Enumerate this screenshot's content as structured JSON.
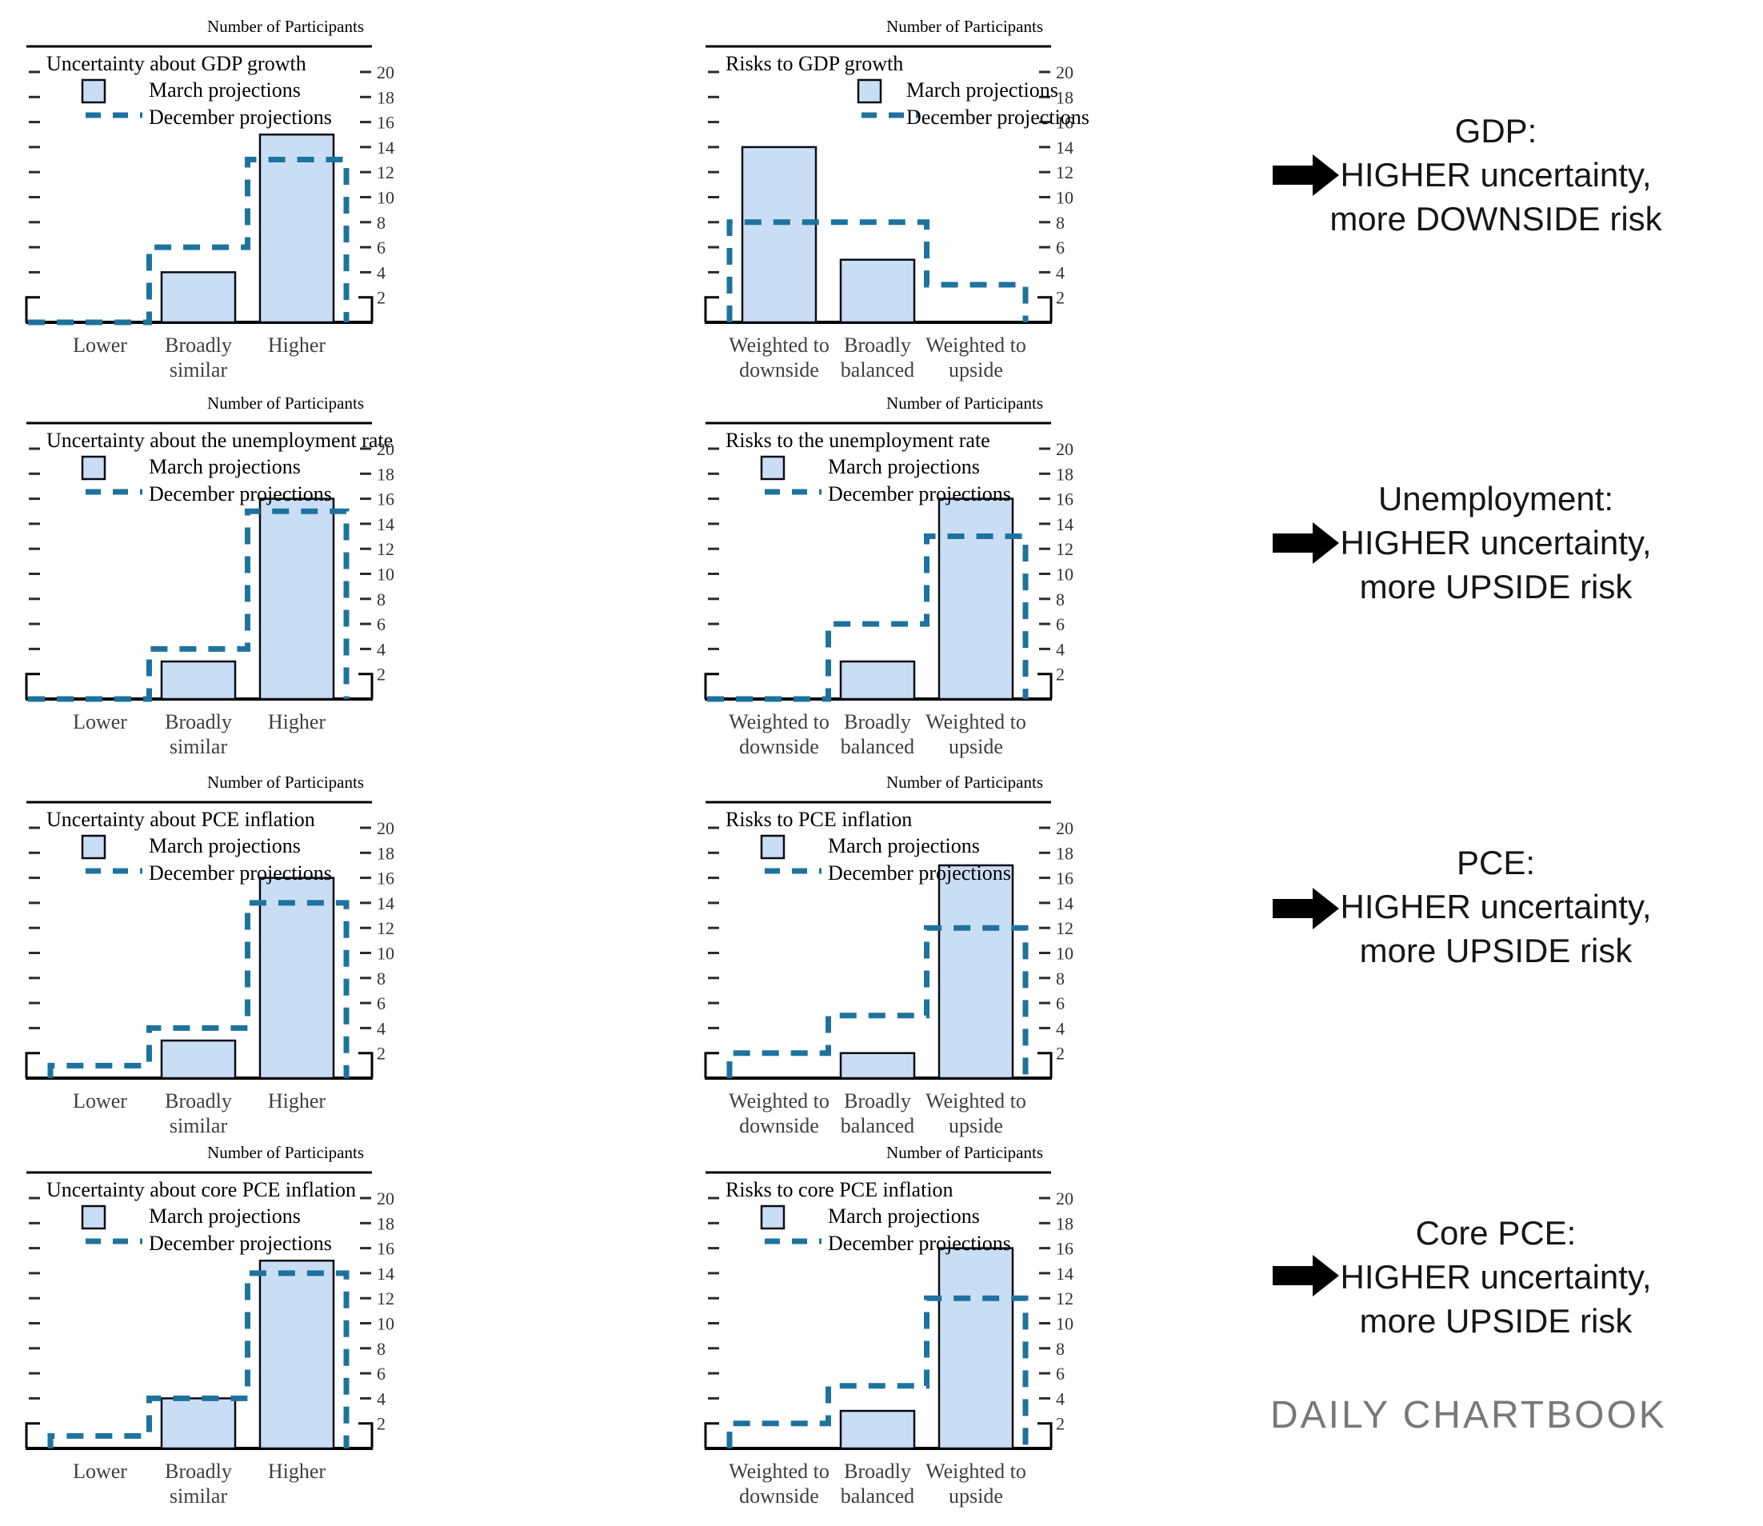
{
  "watermark": "DAILY CHARTBOOK",
  "axis_title": "Number of Participants",
  "legend": {
    "march": "March projections",
    "december": "December projections"
  },
  "y_axis": {
    "min": 0,
    "max": 20,
    "tick_step": 2,
    "labeled_ticks": [
      2,
      4,
      6,
      8,
      10,
      12,
      14,
      16,
      18,
      20
    ]
  },
  "colors": {
    "bar_fill": "#C9DEF4",
    "bar_stroke": "#0B0B15",
    "december_line": "#1D739E",
    "axis_black": "#000000",
    "tick_gray": "#2B2B2B",
    "y_label_gray": "#333333",
    "category_label_gray": "#3F3F3F",
    "annotation_text": "#161616",
    "arrow_black": "#000000",
    "watermark_gray": "#77787B"
  },
  "chart_data": [
    {
      "id": "uncertainty-gdp-growth",
      "type": "bar",
      "title": "Uncertainty about GDP growth",
      "ylabel": "Number of Participants",
      "ylim": [
        0,
        20
      ],
      "legend_position": "left",
      "categories": [
        [
          "Lower"
        ],
        [
          "Broadly",
          "similar"
        ],
        [
          "Higher"
        ]
      ],
      "series": [
        {
          "name": "March projections",
          "style": "bar",
          "values": [
            0,
            4,
            15
          ]
        },
        {
          "name": "December projections",
          "style": "dashed-step",
          "values": [
            0,
            6,
            13
          ]
        }
      ]
    },
    {
      "id": "risks-gdp-growth",
      "type": "bar",
      "title": "Risks to GDP growth",
      "ylabel": "Number of Participants",
      "ylim": [
        0,
        20
      ],
      "legend_position": "right",
      "categories": [
        [
          "Weighted to",
          "downside"
        ],
        [
          "Broadly",
          "balanced"
        ],
        [
          "Weighted to",
          "upside"
        ]
      ],
      "series": [
        {
          "name": "March projections",
          "style": "bar",
          "values": [
            14,
            5,
            0
          ]
        },
        {
          "name": "December projections",
          "style": "dashed-step",
          "values": [
            8,
            8,
            3
          ]
        }
      ]
    },
    {
      "id": "uncertainty-unemployment-rate",
      "type": "bar",
      "title": "Uncertainty about the unemployment rate",
      "ylabel": "Number of Participants",
      "ylim": [
        0,
        20
      ],
      "legend_position": "left",
      "categories": [
        [
          "Lower"
        ],
        [
          "Broadly",
          "similar"
        ],
        [
          "Higher"
        ]
      ],
      "series": [
        {
          "name": "March projections",
          "style": "bar",
          "values": [
            0,
            3,
            16
          ]
        },
        {
          "name": "December projections",
          "style": "dashed-step",
          "values": [
            0,
            4,
            15
          ]
        }
      ]
    },
    {
      "id": "risks-unemployment-rate",
      "type": "bar",
      "title": "Risks to the unemployment rate",
      "ylabel": "Number of Participants",
      "ylim": [
        0,
        20
      ],
      "legend_position": "left",
      "categories": [
        [
          "Weighted to",
          "downside"
        ],
        [
          "Broadly",
          "balanced"
        ],
        [
          "Weighted to",
          "upside"
        ]
      ],
      "series": [
        {
          "name": "March projections",
          "style": "bar",
          "values": [
            0,
            3,
            16
          ]
        },
        {
          "name": "December projections",
          "style": "dashed-step",
          "values": [
            0,
            6,
            13
          ]
        }
      ]
    },
    {
      "id": "uncertainty-pce-inflation",
      "type": "bar",
      "title": "Uncertainty about PCE inflation",
      "ylabel": "Number of Participants",
      "ylim": [
        0,
        20
      ],
      "legend_position": "left",
      "categories": [
        [
          "Lower"
        ],
        [
          "Broadly",
          "similar"
        ],
        [
          "Higher"
        ]
      ],
      "series": [
        {
          "name": "March projections",
          "style": "bar",
          "values": [
            0,
            3,
            16
          ]
        },
        {
          "name": "December projections",
          "style": "dashed-step",
          "values": [
            1,
            4,
            14
          ]
        }
      ]
    },
    {
      "id": "risks-pce-inflation",
      "type": "bar",
      "title": "Risks to PCE inflation",
      "ylabel": "Number of Participants",
      "ylim": [
        0,
        20
      ],
      "legend_position": "left",
      "categories": [
        [
          "Weighted to",
          "downside"
        ],
        [
          "Broadly",
          "balanced"
        ],
        [
          "Weighted to",
          "upside"
        ]
      ],
      "series": [
        {
          "name": "March projections",
          "style": "bar",
          "values": [
            0,
            2,
            17
          ]
        },
        {
          "name": "December projections",
          "style": "dashed-step",
          "values": [
            2,
            5,
            12
          ]
        }
      ]
    },
    {
      "id": "uncertainty-core-pce-inflation",
      "type": "bar",
      "title": "Uncertainty about core PCE inflation",
      "ylabel": "Number of Participants",
      "ylim": [
        0,
        20
      ],
      "legend_position": "left",
      "categories": [
        [
          "Lower"
        ],
        [
          "Broadly",
          "similar"
        ],
        [
          "Higher"
        ]
      ],
      "series": [
        {
          "name": "March projections",
          "style": "bar",
          "values": [
            0,
            4,
            15
          ]
        },
        {
          "name": "December projections",
          "style": "dashed-step",
          "values": [
            1,
            4,
            14
          ]
        }
      ]
    },
    {
      "id": "risks-core-pce-inflation",
      "type": "bar",
      "title": "Risks to core PCE inflation",
      "ylabel": "Number of Participants",
      "ylim": [
        0,
        20
      ],
      "legend_position": "left",
      "categories": [
        [
          "Weighted to",
          "downside"
        ],
        [
          "Broadly",
          "balanced"
        ],
        [
          "Weighted to",
          "upside"
        ]
      ],
      "series": [
        {
          "name": "March projections",
          "style": "bar",
          "values": [
            0,
            3,
            16
          ]
        },
        {
          "name": "December projections",
          "style": "dashed-step",
          "values": [
            2,
            5,
            12
          ]
        }
      ]
    }
  ],
  "annotations": [
    {
      "id": "gdp",
      "lines": [
        "GDP:",
        "HIGHER uncertainty,",
        "more DOWNSIDE risk"
      ]
    },
    {
      "id": "unemployment",
      "lines": [
        "Unemployment:",
        "HIGHER uncertainty,",
        "more UPSIDE risk"
      ]
    },
    {
      "id": "pce",
      "lines": [
        "PCE:",
        "HIGHER uncertainty,",
        "more UPSIDE risk"
      ]
    },
    {
      "id": "core-pce",
      "lines": [
        "Core PCE:",
        "HIGHER uncertainty,",
        "more UPSIDE risk"
      ]
    }
  ]
}
